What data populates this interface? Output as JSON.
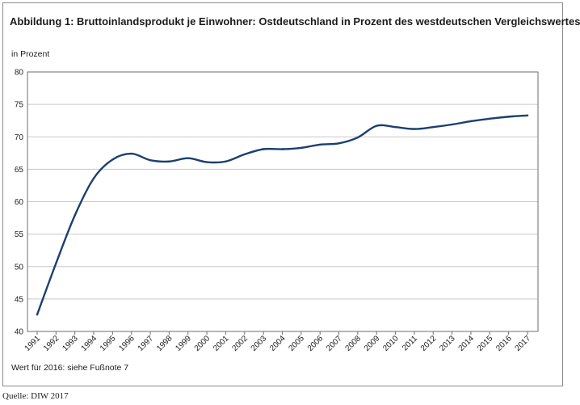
{
  "chart_data": {
    "type": "line",
    "title": "Abbildung 1: Bruttoinlandsprodukt je Einwohner: Ostdeutschland in Prozent des westdeutschen Vergleichswertes",
    "ylabel": "in Prozent",
    "xlabel": "",
    "ylim": [
      40,
      80
    ],
    "yticks": [
      40,
      45,
      50,
      55,
      60,
      65,
      70,
      75,
      80
    ],
    "grid": true,
    "categories": [
      "1991",
      "1992",
      "1993",
      "1994",
      "1995",
      "1996",
      "1997",
      "1998",
      "1999",
      "2000",
      "2001",
      "2002",
      "2003",
      "2004",
      "2005",
      "2006",
      "2007",
      "2008",
      "2009",
      "2010",
      "2011",
      "2012",
      "2013",
      "2014",
      "2015",
      "2016",
      "2017"
    ],
    "series": [
      {
        "name": "Ostdeutschland in Prozent des westdeutschen Vergleichswertes",
        "color": "#1c3f6e",
        "values": [
          42.6,
          50.5,
          57.9,
          63.6,
          66.5,
          67.4,
          66.4,
          66.2,
          66.7,
          66.1,
          66.2,
          67.3,
          68.1,
          68.1,
          68.3,
          68.8,
          69.0,
          69.9,
          71.7,
          71.5,
          71.2,
          71.5,
          71.9,
          72.4,
          72.8,
          73.1,
          73.3
        ]
      }
    ],
    "footnote": "Wert für 2016: siehe Fußnote 7"
  },
  "source": "Quelle: DIW 2017"
}
